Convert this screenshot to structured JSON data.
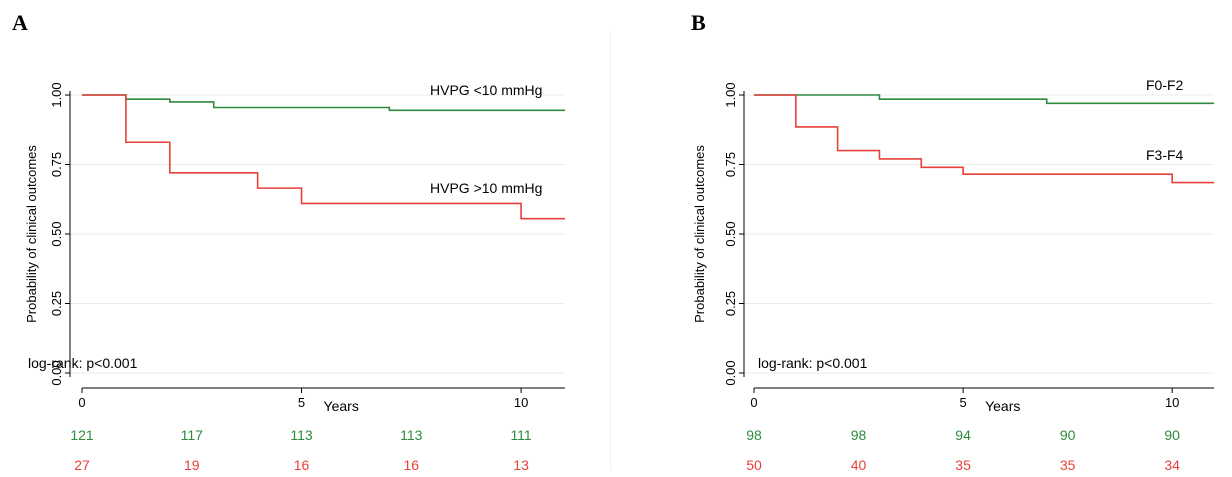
{
  "chart_data": [
    {
      "panel_label": "A",
      "type": "line",
      "step": true,
      "xlabel": "Years",
      "ylabel": "Probability of clinical outcomes",
      "xlim": [
        0,
        11
      ],
      "ylim": [
        0,
        1
      ],
      "x_ticks": [
        "0",
        "5",
        "10"
      ],
      "y_ticks": [
        "0.00",
        "0.25",
        "0.50",
        "0.75",
        "1.00"
      ],
      "grid": true,
      "annotation": "log-rank: p<0.001",
      "series": [
        {
          "name": "HVPG <10 mmHg",
          "color": "#2e8b3e",
          "x": [
            0,
            1,
            2,
            3,
            7,
            11
          ],
          "y": [
            1.0,
            0.985,
            0.975,
            0.955,
            0.945,
            0.945
          ],
          "at_risk": [
            "121",
            "117",
            "113",
            "113",
            "111"
          ]
        },
        {
          "name": "HVPG >10 mmHg",
          "color": "#e8403a",
          "x": [
            0,
            1,
            2,
            4,
            5,
            10,
            11
          ],
          "y": [
            1.0,
            0.83,
            0.72,
            0.665,
            0.61,
            0.555,
            0.555
          ],
          "at_risk": [
            "27",
            "19",
            "16",
            "16",
            "13"
          ]
        }
      ]
    },
    {
      "panel_label": "B",
      "type": "line",
      "step": true,
      "xlabel": "Years",
      "ylabel": "Probability of clinical outcomes",
      "xlim": [
        0,
        11
      ],
      "ylim": [
        0,
        1
      ],
      "x_ticks": [
        "0",
        "5",
        "10"
      ],
      "y_ticks": [
        "0.00",
        "0.25",
        "0.50",
        "0.75",
        "1.00"
      ],
      "grid": true,
      "annotation": "log-rank: p<0.001",
      "series": [
        {
          "name": "F0-F2",
          "color": "#2e8b3e",
          "x": [
            0,
            3,
            7,
            11
          ],
          "y": [
            1.0,
            0.985,
            0.97,
            0.97
          ],
          "at_risk": [
            "98",
            "98",
            "94",
            "90",
            "90"
          ]
        },
        {
          "name": "F3-F4",
          "color": "#e8403a",
          "x": [
            0,
            1,
            2,
            3,
            4,
            5,
            10,
            11
          ],
          "y": [
            1.0,
            0.885,
            0.8,
            0.77,
            0.74,
            0.715,
            0.685,
            0.685
          ],
          "at_risk": [
            "50",
            "40",
            "35",
            "35",
            "34"
          ]
        }
      ]
    }
  ]
}
